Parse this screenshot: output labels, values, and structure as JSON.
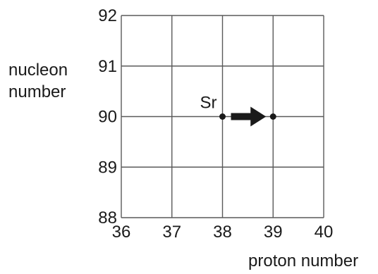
{
  "chart_data": {
    "type": "scatter",
    "title": "",
    "xlabel": "proton number",
    "ylabel_lines": [
      "nucleon",
      "number"
    ],
    "xlim": [
      36,
      40
    ],
    "ylim": [
      88,
      92
    ],
    "xticks": [
      "36",
      "37",
      "38",
      "39",
      "40"
    ],
    "yticks": [
      "88",
      "89",
      "90",
      "91",
      "92"
    ],
    "grid": true,
    "points": [
      {
        "x": 38,
        "y": 90,
        "label": "Sr"
      },
      {
        "x": 39,
        "y": 90,
        "label": ""
      }
    ],
    "arrow": {
      "from": {
        "x": 38,
        "y": 90
      },
      "to": {
        "x": 39,
        "y": 90
      }
    },
    "colors": {
      "line": "#5a5a5a",
      "mark": "#1a1a1a"
    }
  }
}
